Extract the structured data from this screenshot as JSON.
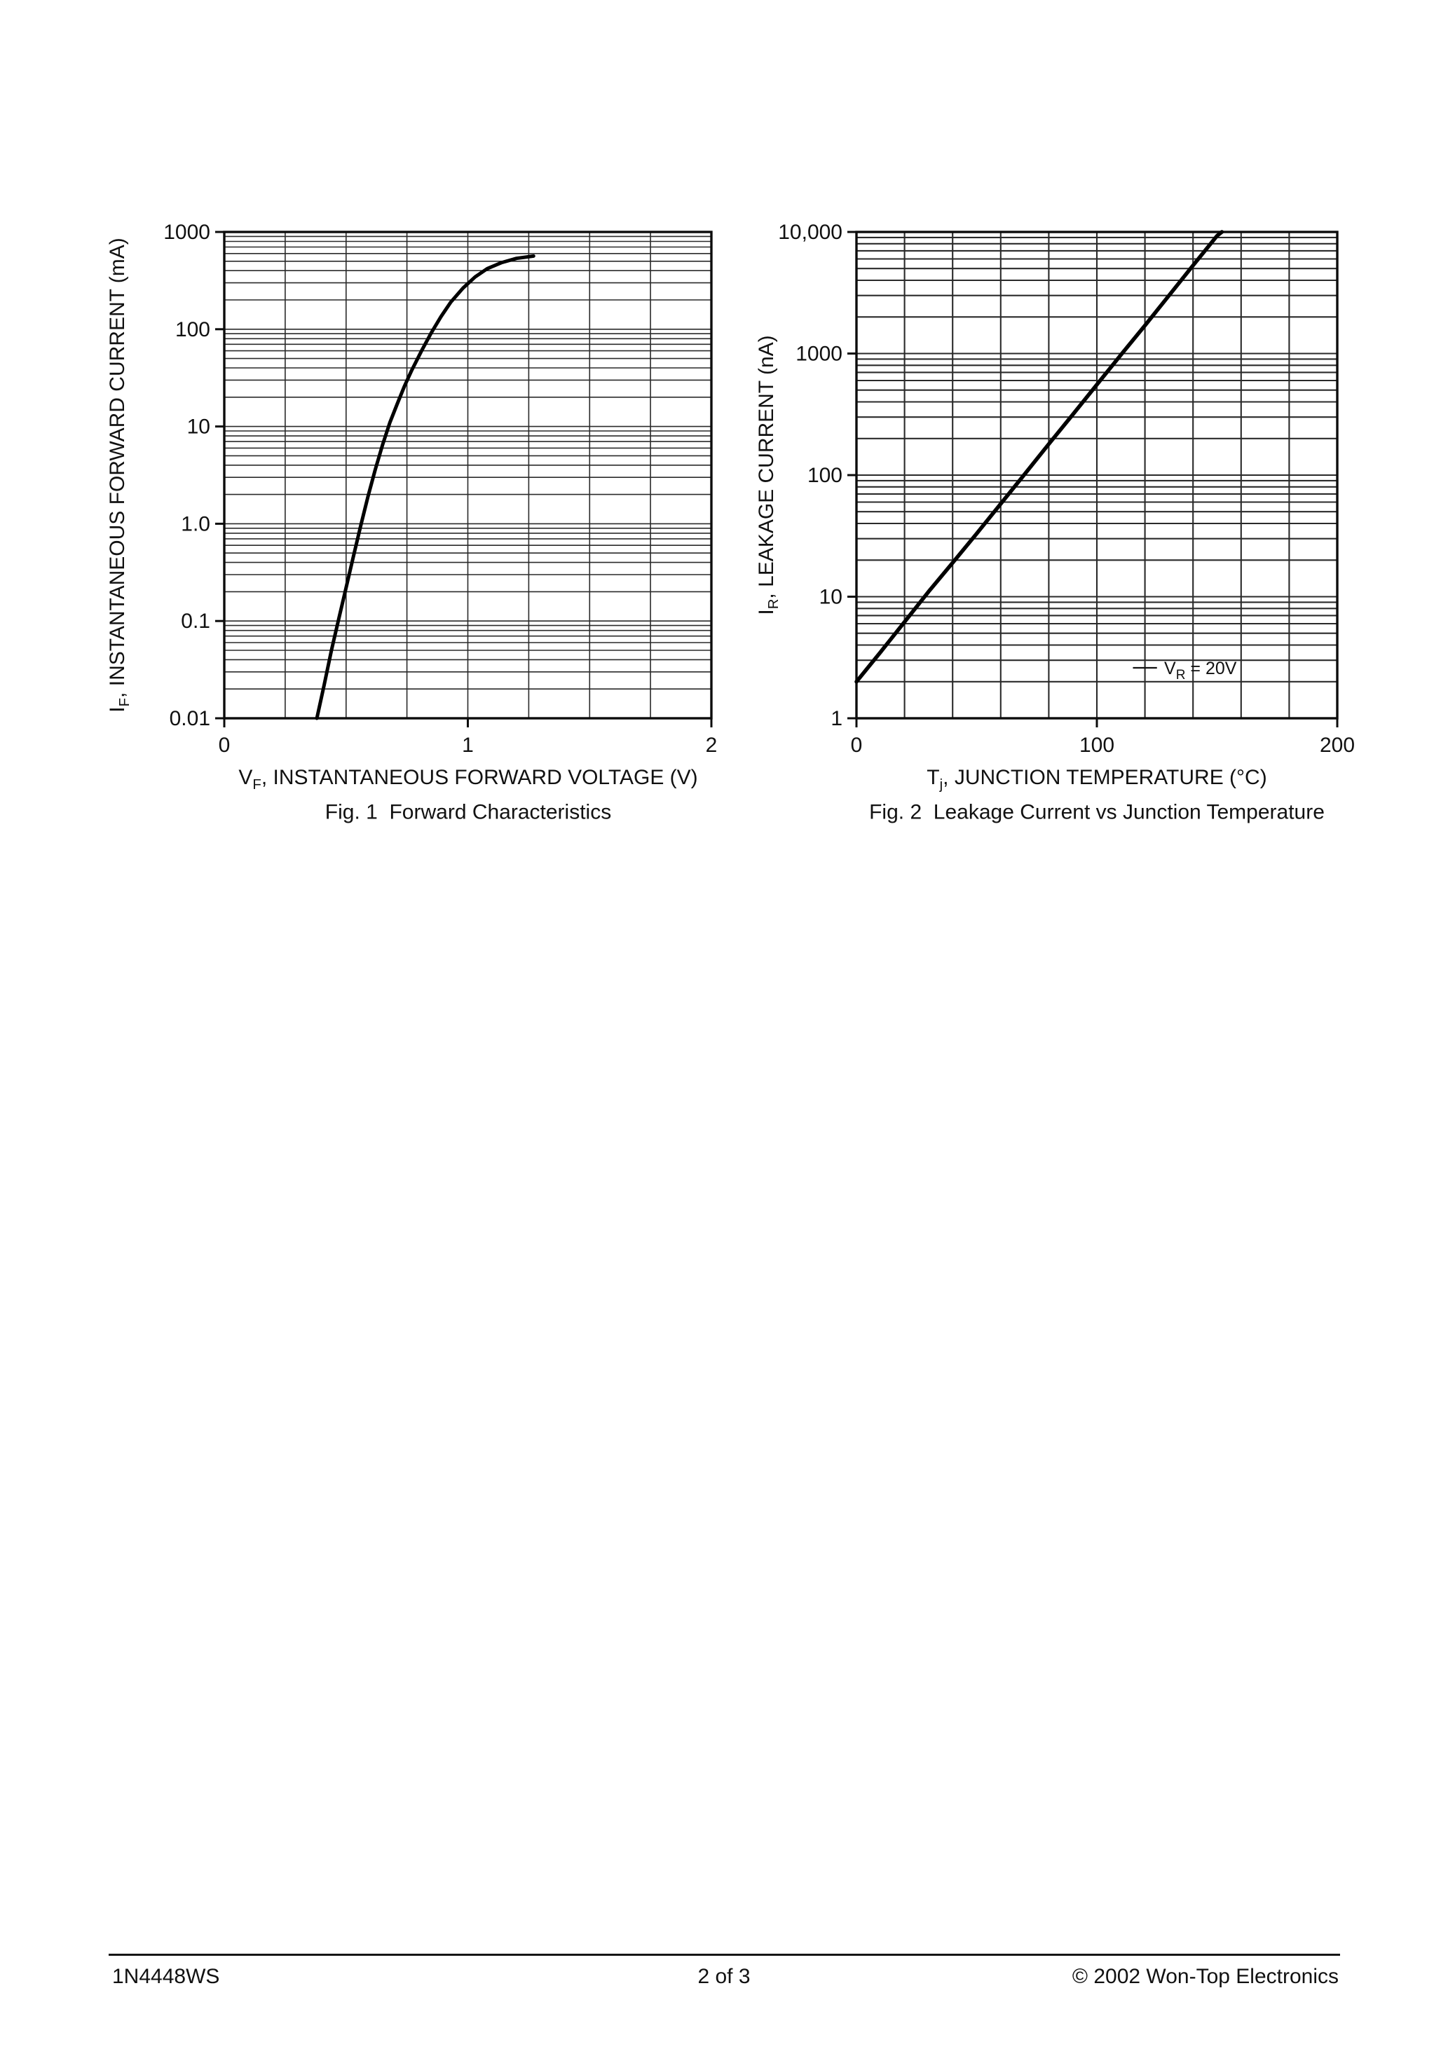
{
  "page": {
    "footer": {
      "left": "1N4448WS",
      "center": "2 of 3",
      "right": "© 2002 Won-Top Electronics"
    }
  },
  "chart_data": [
    {
      "type": "line",
      "title": "Fig. 1  Forward Characteristics",
      "xlabel": "VF, INSTANTANEOUS FORWARD VOLTAGE (V)",
      "ylabel": "IF, INSTANTANEOUS FORWARD CURRENT (mA)",
      "xlabel_parts": {
        "pre": "V",
        "sub": "F",
        "post": ", INSTANTANEOUS FORWARD VOLTAGE (V)"
      },
      "ylabel_parts": {
        "pre": "I",
        "sub": "F",
        "post": ", INSTANTANEOUS FORWARD CURRENT (mA)"
      },
      "xlim": [
        0,
        2
      ],
      "x_ticks": [
        0,
        1,
        2
      ],
      "x_tick_labels": [
        "0",
        "1",
        "2"
      ],
      "x_minor_step": 0.25,
      "y_scale": "log",
      "ylim": [
        0.01,
        1000
      ],
      "y_tick_labels": [
        "1000",
        "100",
        "10",
        "1.0",
        "0.1",
        "0.01"
      ],
      "grid": true,
      "series": [
        {
          "name": "forward-current-vs-voltage",
          "points": [
            [
              0.38,
              0.01
            ],
            [
              0.41,
              0.022
            ],
            [
              0.44,
              0.05
            ],
            [
              0.47,
              0.105
            ],
            [
              0.5,
              0.22
            ],
            [
              0.53,
              0.46
            ],
            [
              0.56,
              0.95
            ],
            [
              0.59,
              1.9
            ],
            [
              0.62,
              3.6
            ],
            [
              0.65,
              6.5
            ],
            [
              0.68,
              11
            ],
            [
              0.71,
              17
            ],
            [
              0.74,
              26
            ],
            [
              0.77,
              38
            ],
            [
              0.81,
              60
            ],
            [
              0.85,
              92
            ],
            [
              0.89,
              135
            ],
            [
              0.93,
              190
            ],
            [
              0.98,
              265
            ],
            [
              1.03,
              345
            ],
            [
              1.08,
              420
            ],
            [
              1.14,
              485
            ],
            [
              1.2,
              535
            ],
            [
              1.27,
              565
            ]
          ]
        }
      ]
    },
    {
      "type": "line",
      "title": "Fig. 2  Leakage Current vs Junction Temperature",
      "xlabel": "Tj, JUNCTION TEMPERATURE (°C)",
      "ylabel": "IR, LEAKAGE CURRENT (nA)",
      "xlabel_parts": {
        "pre": "T",
        "sub": "j",
        "post": ", JUNCTION TEMPERATURE (°C)"
      },
      "ylabel_parts": {
        "pre": "I",
        "sub": "R",
        "post": ", LEAKAGE CURRENT (nA)"
      },
      "xlim": [
        0,
        200
      ],
      "x_ticks": [
        0,
        100,
        200
      ],
      "x_tick_labels": [
        "0",
        "100",
        "200"
      ],
      "x_minor_step": 20,
      "y_scale": "log",
      "ylim": [
        1,
        10000
      ],
      "y_tick_labels": [
        "10,000",
        "1000",
        "100",
        "10",
        "1"
      ],
      "grid": true,
      "annotation": {
        "pre": "V",
        "sub": "R",
        "post": " = 20V",
        "y": 2.6,
        "line_x": [
          115,
          125
        ],
        "text_x": 128
      },
      "series": [
        {
          "name": "leakage-current-vs-temperature",
          "points": [
            [
              0,
              2
            ],
            [
              10,
              3.5
            ],
            [
              20,
              6.2
            ],
            [
              30,
              11
            ],
            [
              40,
              19
            ],
            [
              50,
              33
            ],
            [
              60,
              58
            ],
            [
              70,
              102
            ],
            [
              80,
              180
            ],
            [
              90,
              315
            ],
            [
              100,
              555
            ],
            [
              110,
              975
            ],
            [
              120,
              1700
            ],
            [
              130,
              3000
            ],
            [
              140,
              5300
            ],
            [
              150,
              9300
            ],
            [
              152,
              10000
            ]
          ]
        }
      ]
    }
  ]
}
